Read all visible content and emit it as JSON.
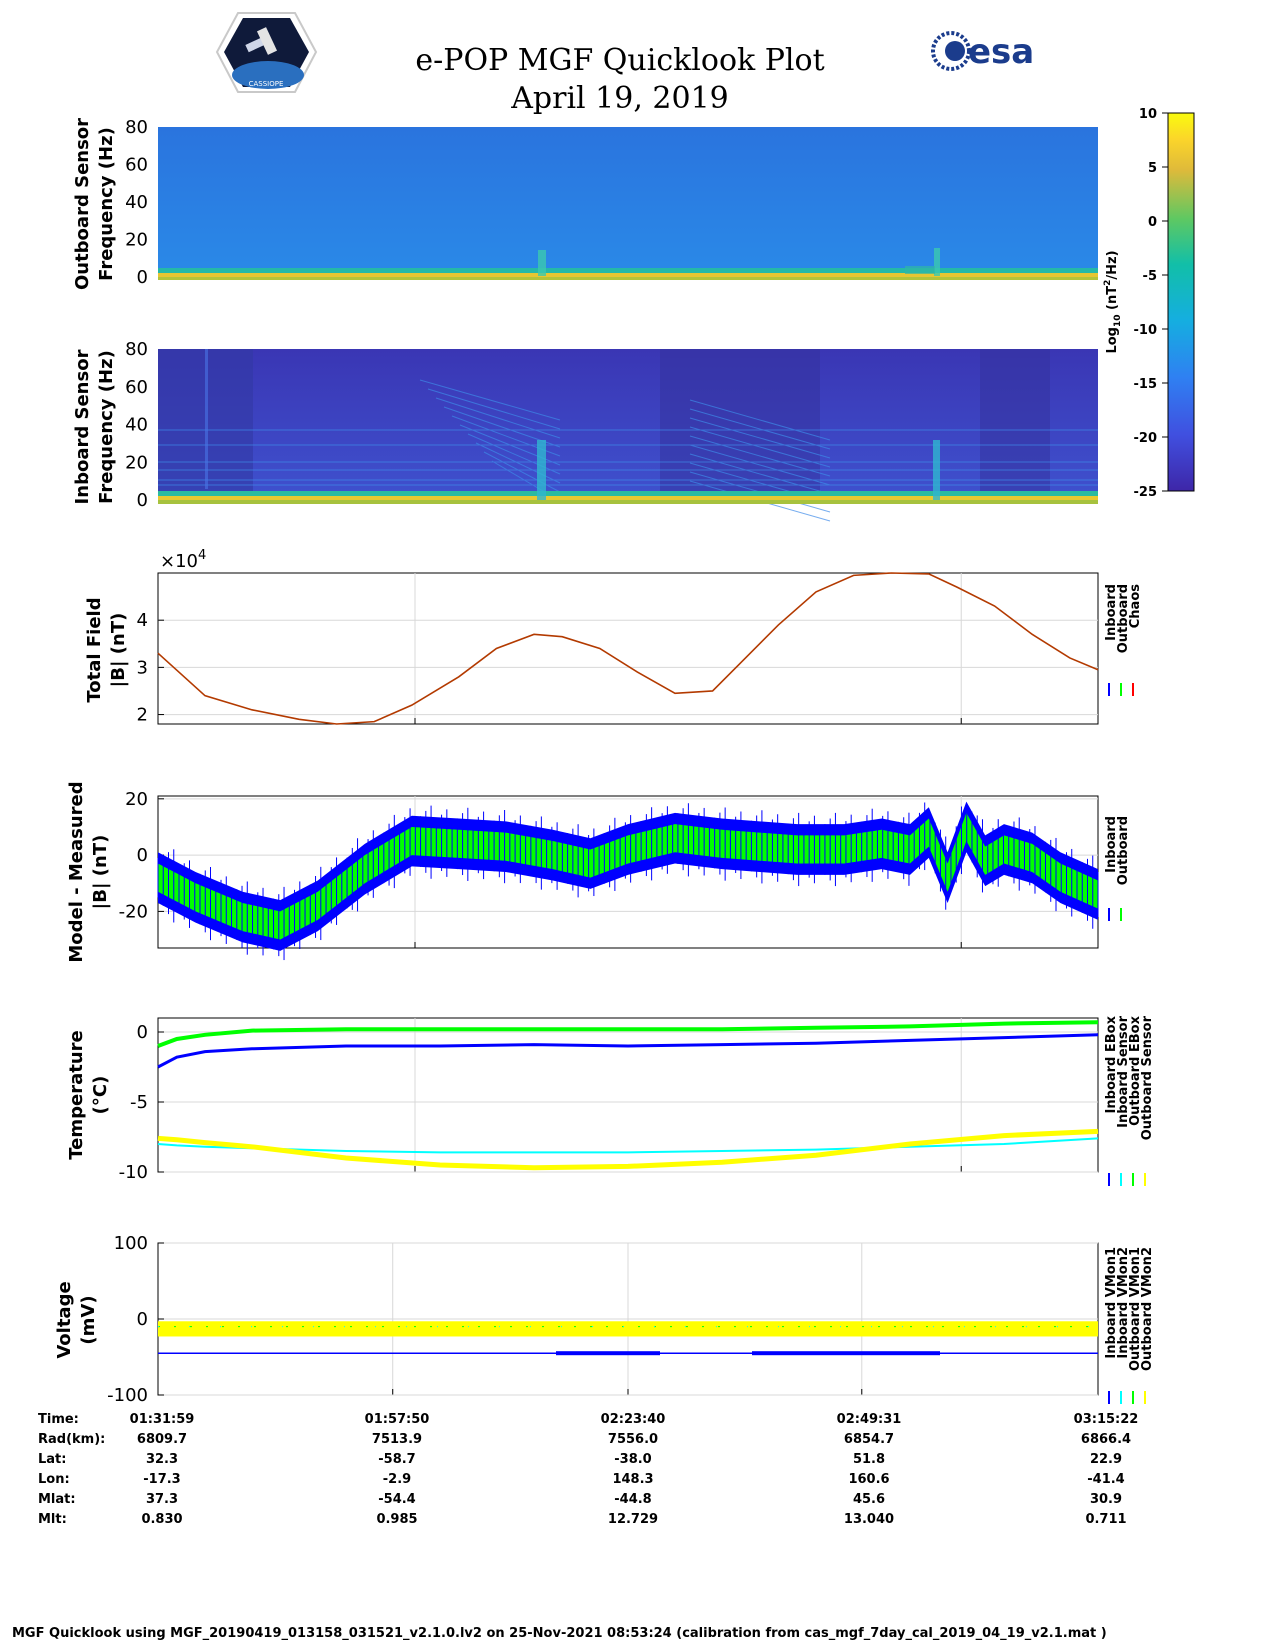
{
  "header": {
    "title": "e-POP MGF Quicklook Plot",
    "date": "April 19, 2019",
    "logo_left_text": "CASSIOPE",
    "logo_right_text": "esa"
  },
  "colors": {
    "spectro_outboard_bg": "#2e78e0",
    "spectro_inboard_bg": "#3a3fbf",
    "inboard": "#0000ff",
    "outboard": "#00ff00",
    "chaos": "#ff0000",
    "total_field_curve": "#b33a00",
    "inboard_sensor": "#00ffff",
    "outboard_sensor": "#ffff00",
    "grid": "#d8d8d8"
  },
  "chart_data": [
    {
      "id": "outboard_spectrogram",
      "type": "heatmap",
      "ylabel": [
        "Outboard Sensor",
        "Frequency (Hz)"
      ],
      "ylim": [
        0,
        80
      ],
      "yticks": [
        "80",
        "60",
        "40",
        "20",
        "0"
      ],
      "description_values": "low-frequency band near 0-2 Hz elevated (~-5); background ~ -17"
    },
    {
      "id": "inboard_spectrogram",
      "type": "heatmap",
      "ylabel": [
        "Inboard Sensor",
        "Frequency (Hz)"
      ],
      "ylim": [
        0,
        80
      ],
      "yticks": [
        "80",
        "60",
        "40",
        "20",
        "0"
      ],
      "description_values": "background ~ -22 with harmonic lines; strong band at 0-2 Hz"
    },
    {
      "id": "colorbar",
      "type": "heatmap",
      "label": "Log10 (nT^2/Hz)",
      "label_main": "Log",
      "label_sub": "10",
      "label_rest": " (nT",
      "label_sup": "2",
      "label_end": "/Hz)",
      "range": [
        -25,
        10
      ],
      "ticks": [
        "10",
        "5",
        "0",
        "-5",
        "-10",
        "-15",
        "-20",
        "-25"
      ]
    },
    {
      "id": "total_field",
      "type": "line",
      "ylabel": [
        "Total Field",
        "|B| (nT)"
      ],
      "multiplier_base": "×10",
      "multiplier_exp": "4",
      "ylim": [
        1.8,
        5.0
      ],
      "yticks": [
        "4",
        "3",
        "2"
      ],
      "ytick_values": [
        4,
        3,
        2
      ],
      "legend": [
        "Inboard",
        "Outboard",
        "Chaos"
      ],
      "x": [
        0,
        0.05,
        0.1,
        0.15,
        0.19,
        0.23,
        0.27,
        0.32,
        0.36,
        0.4,
        0.43,
        0.47,
        0.51,
        0.55,
        0.59,
        0.62,
        0.66,
        0.7,
        0.74,
        0.78,
        0.82,
        0.85,
        0.89,
        0.93,
        0.97,
        1.0
      ],
      "values": [
        3.3,
        2.4,
        2.1,
        1.9,
        1.8,
        1.85,
        2.2,
        2.8,
        3.4,
        3.7,
        3.65,
        3.4,
        2.9,
        2.45,
        2.5,
        3.1,
        3.9,
        4.6,
        4.95,
        5.0,
        4.98,
        4.7,
        4.3,
        3.7,
        3.2,
        2.95
      ]
    },
    {
      "id": "model_minus_measured",
      "type": "line",
      "ylabel": [
        "Model - Measured",
        "|B| (nT)"
      ],
      "ylim": [
        -33,
        21
      ],
      "yticks": [
        "20",
        "0",
        "-20"
      ],
      "ytick_values": [
        20,
        0,
        -20
      ],
      "legend": [
        "Inboard",
        "Outboard"
      ],
      "x": [
        0,
        0.04,
        0.09,
        0.13,
        0.17,
        0.22,
        0.27,
        0.32,
        0.37,
        0.42,
        0.46,
        0.5,
        0.55,
        0.6,
        0.64,
        0.68,
        0.73,
        0.77,
        0.8,
        0.82,
        0.84,
        0.86,
        0.88,
        0.9,
        0.93,
        0.96,
        1.0
      ],
      "series": [
        {
          "name": "Inboard",
          "center": [
            -8,
            -15,
            -22,
            -25,
            -18,
            -5,
            5,
            4,
            3,
            0,
            -3,
            2,
            6,
            4,
            3,
            2,
            2,
            4,
            2,
            8,
            -8,
            10,
            -2,
            2,
            -1,
            -8,
            -14
          ],
          "half_width": 9
        },
        {
          "name": "Outboard",
          "center": [
            -8,
            -15,
            -22,
            -25,
            -18,
            -5,
            5,
            4,
            3,
            0,
            -3,
            2,
            6,
            4,
            3,
            2,
            2,
            4,
            2,
            8,
            -8,
            10,
            -2,
            2,
            -1,
            -8,
            -14
          ],
          "half_width": 5
        }
      ]
    },
    {
      "id": "temperature",
      "type": "line",
      "ylabel": [
        "Temperature",
        "(°C)"
      ],
      "ylim": [
        -10,
        1
      ],
      "yticks": [
        "0",
        "-5",
        "-10"
      ],
      "ytick_values": [
        0,
        -5,
        -10
      ],
      "legend": [
        "Inboard EBox",
        "Inboard Sensor",
        "Outboard EBox",
        "Outboard Sensor"
      ],
      "x": [
        0,
        0.02,
        0.05,
        0.1,
        0.2,
        0.3,
        0.4,
        0.5,
        0.6,
        0.7,
        0.8,
        0.9,
        1.0
      ],
      "series": [
        {
          "name": "Inboard EBox",
          "values": [
            -2.5,
            -1.8,
            -1.4,
            -1.2,
            -1.0,
            -1.0,
            -0.9,
            -1.0,
            -0.9,
            -0.8,
            -0.6,
            -0.4,
            -0.2
          ]
        },
        {
          "name": "Inboard Sensor",
          "values": [
            -8.0,
            -8.1,
            -8.2,
            -8.3,
            -8.5,
            -8.6,
            -8.6,
            -8.6,
            -8.5,
            -8.4,
            -8.2,
            -8.0,
            -7.6
          ]
        },
        {
          "name": "Outboard EBox",
          "values": [
            -1.0,
            -0.5,
            -0.2,
            0.1,
            0.2,
            0.2,
            0.2,
            0.2,
            0.2,
            0.3,
            0.4,
            0.6,
            0.7
          ]
        },
        {
          "name": "Outboard Sensor",
          "values": [
            -7.6,
            -7.7,
            -7.9,
            -8.2,
            -9.0,
            -9.5,
            -9.7,
            -9.6,
            -9.3,
            -8.8,
            -8.0,
            -7.4,
            -7.1
          ]
        }
      ]
    },
    {
      "id": "voltage",
      "type": "line",
      "ylabel": [
        "Voltage",
        "(mV)"
      ],
      "ylim": [
        -100,
        100
      ],
      "yticks": [
        "100",
        "0",
        "-100"
      ],
      "ytick_values": [
        100,
        0,
        -100
      ],
      "legend": [
        "Inboard VMon1",
        "Inboard VMon2",
        "Outboard VMon1",
        "Outboard VMon2"
      ],
      "series": [
        {
          "name": "Inboard VMon1",
          "values": [
            -45
          ]
        },
        {
          "name": "Inboard VMon2",
          "values": [
            -10
          ]
        },
        {
          "name": "Outboard VMon1",
          "values": [
            -10
          ]
        },
        {
          "name": "Outboard VMon2",
          "values": [
            -13
          ]
        }
      ]
    }
  ],
  "orbit_table": {
    "row_labels": [
      "Time:",
      "Rad(km):",
      "Lat:",
      "Lon:",
      "Mlat:",
      "Mlt:"
    ],
    "columns": [
      [
        "01:31:59",
        "6809.7",
        "32.3",
        "-17.3",
        "37.3",
        "0.830"
      ],
      [
        "01:57:50",
        "7513.9",
        "-58.7",
        "-2.9",
        "-54.4",
        "0.985"
      ],
      [
        "02:23:40",
        "7556.0",
        "-38.0",
        "148.3",
        "-44.8",
        "12.729"
      ],
      [
        "02:49:31",
        "6854.7",
        "51.8",
        "160.6",
        "45.6",
        "13.040"
      ],
      [
        "03:15:22",
        "6866.4",
        "22.9",
        "-41.4",
        "30.9",
        "0.711"
      ]
    ]
  },
  "footer": "MGF Quicklook using MGF_20190419_013158_031521_v2.1.0.lv2 on 25-Nov-2021 08:53:24 (calibration from cas_mgf_7day_cal_2019_04_19_v2.1.mat )"
}
